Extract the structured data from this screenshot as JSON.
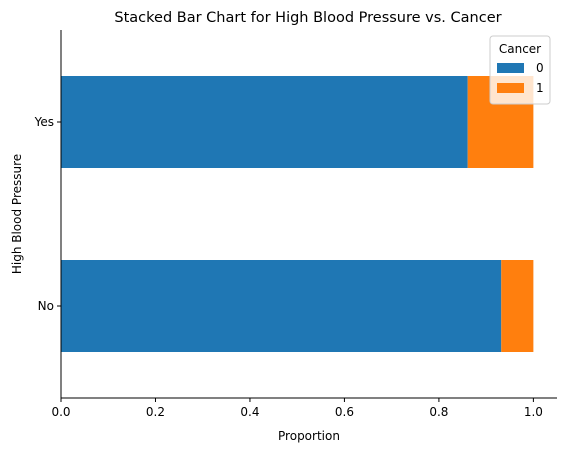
{
  "chart_data": {
    "type": "bar",
    "orientation": "horizontal",
    "stacked": true,
    "title": "Stacked Bar Chart for High Blood Pressure vs. Cancer",
    "xlabel": "Proportion",
    "ylabel": "High Blood Pressure",
    "categories": [
      "No",
      "Yes"
    ],
    "xlim": [
      0,
      1.05
    ],
    "xticks": [
      0.0,
      0.2,
      0.4,
      0.6,
      0.8,
      1.0
    ],
    "xtick_labels": [
      "0.0",
      "0.2",
      "0.4",
      "0.6",
      "0.8",
      "1.0"
    ],
    "grid": false,
    "legend": {
      "title": "Cancer",
      "placement": "top-right"
    },
    "series": [
      {
        "name": "0",
        "color": "#1f77b4",
        "values": [
          0.932,
          0.861
        ]
      },
      {
        "name": "1",
        "color": "#ff7f0e",
        "values": [
          0.068,
          0.139
        ]
      }
    ]
  }
}
